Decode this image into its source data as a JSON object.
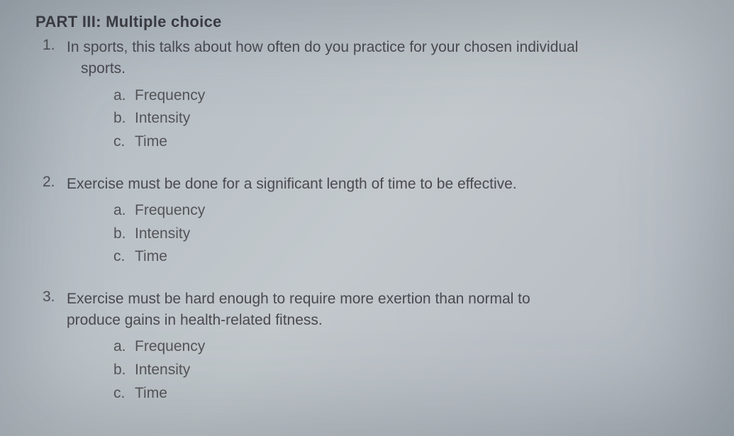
{
  "partTitle": "PART III: Multiple choice",
  "questions": [
    {
      "num": "1.",
      "textLine1": "In sports, this talks about how often do you practice for your chosen individual",
      "textLine2": "sports.",
      "options": [
        {
          "letter": "a.",
          "label": "Frequency"
        },
        {
          "letter": "b.",
          "label": "Intensity"
        },
        {
          "letter": "c.",
          "label": "Time"
        }
      ]
    },
    {
      "num": "2.",
      "textLine1": "Exercise must be done for a significant length of time to be effective.",
      "textLine2": "",
      "options": [
        {
          "letter": "a.",
          "label": "Frequency"
        },
        {
          "letter": "b.",
          "label": "Intensity"
        },
        {
          "letter": "c.",
          "label": "Time"
        }
      ]
    },
    {
      "num": "3.",
      "textLine1": "Exercise must be hard enough to require more exertion than normal to",
      "textLine2": "produce gains in health-related fitness.",
      "options": [
        {
          "letter": "a.",
          "label": "Frequency"
        },
        {
          "letter": "b.",
          "label": "Intensity"
        },
        {
          "letter": "c.",
          "label": "Time"
        }
      ]
    }
  ]
}
